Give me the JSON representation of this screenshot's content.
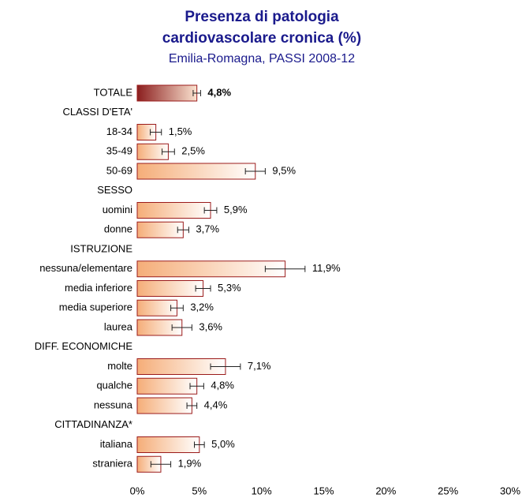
{
  "chart_data": {
    "type": "hbar",
    "title": [
      "Presenza di patologia",
      "cardiovascolare cronica (%)"
    ],
    "subtitle": "Emilia-Romagna, PASSI 2008-12",
    "categories": [
      "TOTALE",
      "CLASSI D'ETA'",
      "18-34",
      "35-49",
      "50-69",
      "SESSO",
      "uomini",
      "donne",
      "ISTRUZIONE",
      "nessuna/elementare",
      "media inferiore",
      "media superiore",
      "laurea",
      "DIFF. ECONOMICHE",
      "molte",
      "qualche",
      "nessuna",
      "CITTADINANZA*",
      "italiana",
      "straniera"
    ],
    "values": [
      4.8,
      null,
      1.5,
      2.5,
      9.5,
      null,
      5.9,
      3.7,
      null,
      11.9,
      5.3,
      3.2,
      3.6,
      null,
      7.1,
      4.8,
      4.4,
      null,
      5.0,
      1.9
    ],
    "value_labels": [
      "4,8%",
      null,
      "1,5%",
      "2,5%",
      "9,5%",
      null,
      "5,9%",
      "3,7%",
      null,
      "11,9%",
      "5,3%",
      "3,2%",
      "3,6%",
      null,
      "7,1%",
      "4,8%",
      "4,4%",
      null,
      "5,0%",
      "1,9%"
    ],
    "errors": [
      0.3,
      null,
      0.45,
      0.5,
      0.8,
      null,
      0.5,
      0.45,
      null,
      1.6,
      0.6,
      0.5,
      0.8,
      null,
      1.2,
      0.55,
      0.4,
      null,
      0.4,
      0.8
    ],
    "xlim": [
      0,
      30
    ],
    "xticks": [
      {
        "value": 0,
        "label": "0%"
      },
      {
        "value": 5,
        "label": "5%"
      },
      {
        "value": 10,
        "label": "10%"
      },
      {
        "value": 15,
        "label": "15%"
      },
      {
        "value": 20,
        "label": "20%"
      },
      {
        "value": 25,
        "label": "25%"
      },
      {
        "value": 30,
        "label": "30%"
      }
    ],
    "color": "#f5ad78",
    "total_color": "#8b1e1e",
    "edge_color": "#9b1b1b"
  }
}
